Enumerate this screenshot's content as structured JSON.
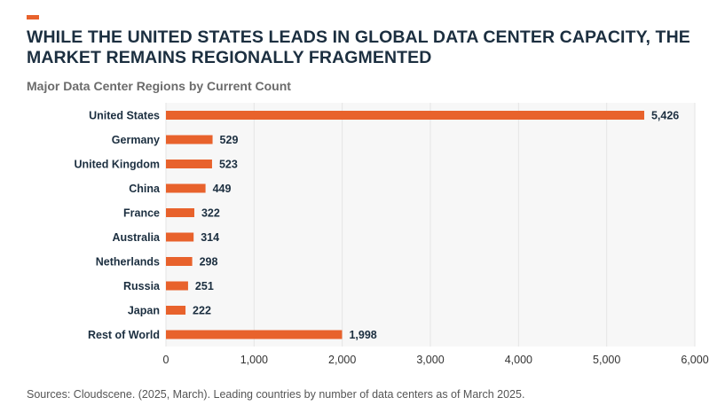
{
  "header": {
    "title": "WHILE THE UNITED STATES LEADS IN GLOBAL DATA CENTER CAPACITY, THE MARKET REMAINS REGIONALLY FRAGMENTED"
  },
  "footer": {
    "source": "Sources: Cloudscene. (2025, March). Leading countries by number of data centers as of March 2025."
  },
  "colors": {
    "accent": "#e8622c",
    "bar": "#e8622c",
    "grid": "#e6e6e6",
    "plot_bg": "#f7f7f7"
  },
  "chart_data": {
    "type": "bar",
    "orientation": "horizontal",
    "title": "Major Data Center Regions by Current Count",
    "xlabel": "",
    "ylabel": "",
    "categories": [
      "United States",
      "Germany",
      "United Kingdom",
      "China",
      "France",
      "Australia",
      "Netherlands",
      "Russia",
      "Japan",
      "Rest of World"
    ],
    "values": [
      5426,
      529,
      523,
      449,
      322,
      314,
      298,
      251,
      222,
      1998
    ],
    "value_labels": [
      "5,426",
      "529",
      "523",
      "449",
      "322",
      "314",
      "298",
      "251",
      "222",
      "1,998"
    ],
    "xlim": [
      0,
      6000
    ],
    "xticks": [
      0,
      1000,
      2000,
      3000,
      4000,
      5000,
      6000
    ],
    "xtick_labels": [
      "0",
      "1,000",
      "2,000",
      "3,000",
      "4,000",
      "5,000",
      "6,000"
    ],
    "grid": true
  }
}
